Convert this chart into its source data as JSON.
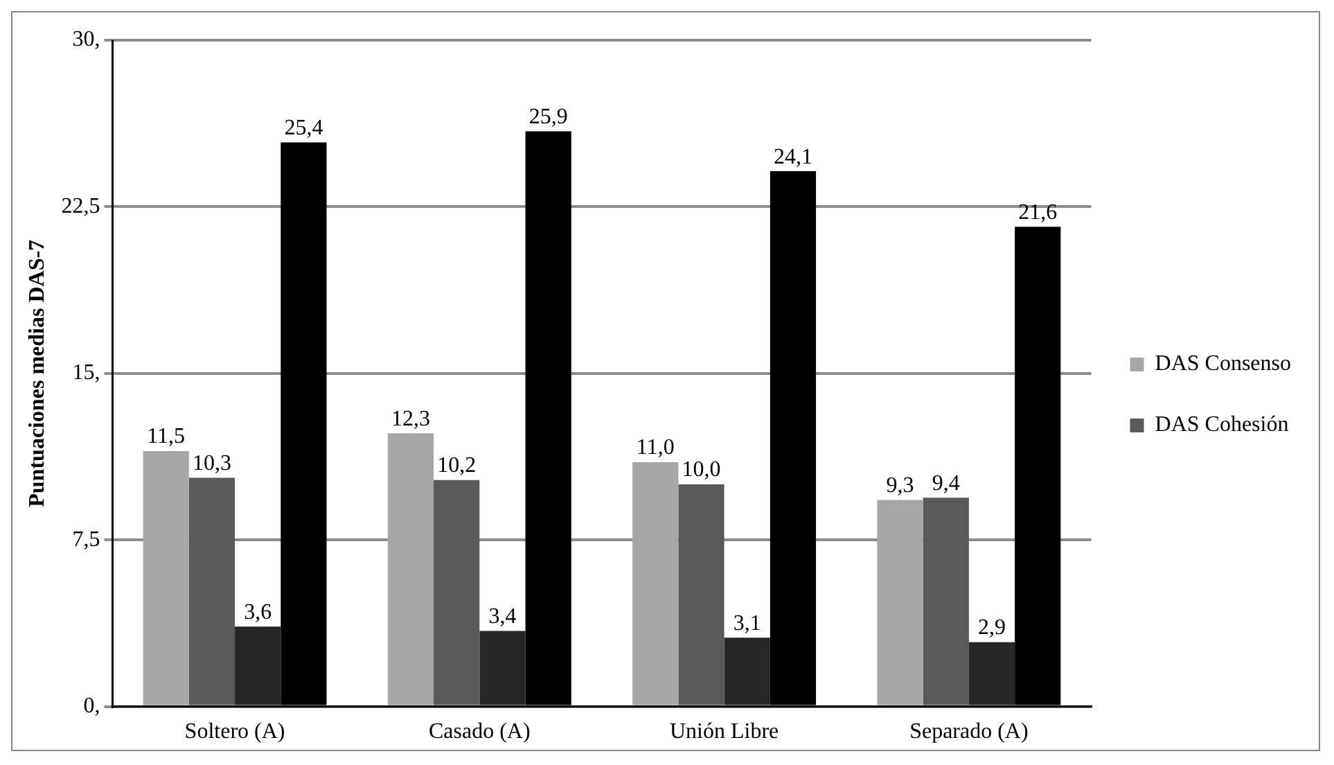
{
  "chart_data": {
    "type": "bar",
    "ylabel": "Puntuaciones medias DAS-7",
    "categories": [
      "Soltero (A)",
      "Casado (A)",
      "Unión Libre",
      "Separado (A)"
    ],
    "series": [
      {
        "name": "DAS Consenso",
        "color": "#a6a6a6",
        "values": [
          11.5,
          12.3,
          11.0,
          9.3
        ],
        "value_labels": [
          "11,5",
          "12,3",
          "11,0",
          "9,3"
        ]
      },
      {
        "name": "DAS Cohesión",
        "color": "#595959",
        "values": [
          10.3,
          10.2,
          10.0,
          9.4
        ],
        "value_labels": [
          "10,3",
          "10,2",
          "10,0",
          "9,4"
        ]
      },
      {
        "color": "#262626",
        "values": [
          3.6,
          3.4,
          3.1,
          2.9
        ],
        "value_labels": [
          "3,6",
          "3,4",
          "3,1",
          "2,9"
        ]
      },
      {
        "color": "#000000",
        "values": [
          25.4,
          25.9,
          24.1,
          21.6
        ],
        "value_labels": [
          "25,4",
          "25,9",
          "24,1",
          "21,6"
        ]
      }
    ],
    "ylim": [
      0,
      30
    ],
    "yticks": [
      {
        "value": 0,
        "label": "0,"
      },
      {
        "value": 7.5,
        "label": "7,5"
      },
      {
        "value": 15,
        "label": "15,"
      },
      {
        "value": 22.5,
        "label": "22,5"
      },
      {
        "value": 30,
        "label": "30,"
      }
    ],
    "grid": "y",
    "legend": "right"
  }
}
